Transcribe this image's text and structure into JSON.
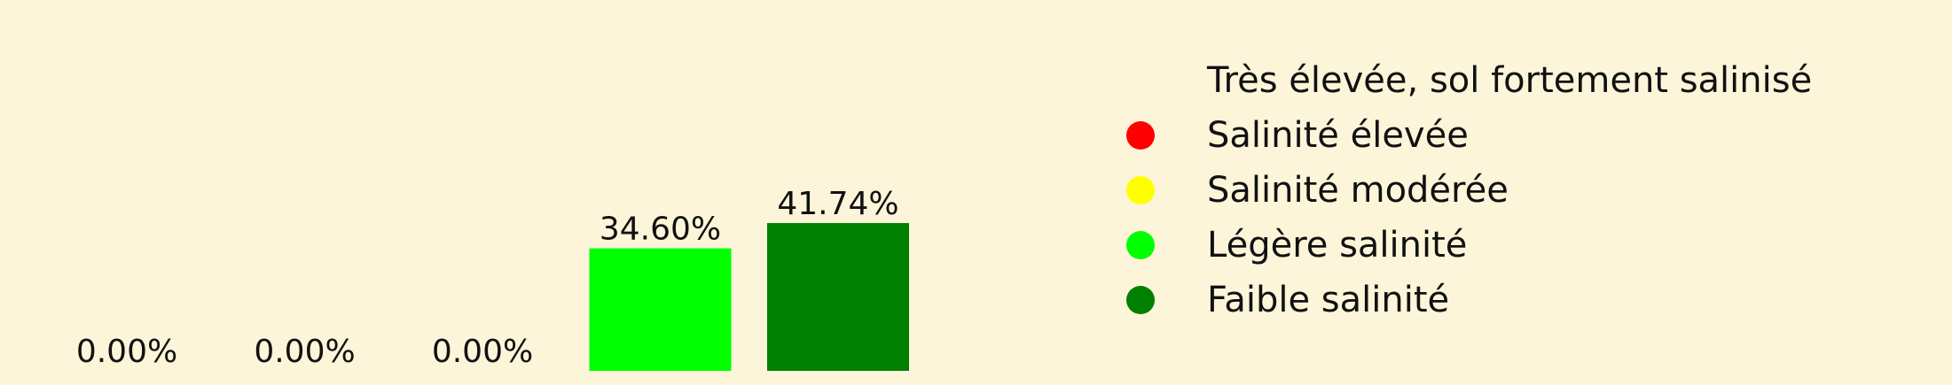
{
  "chart_data": {
    "type": "bar",
    "categories": [
      "Très élevée, sol fortement salinisé",
      "Salinité élevée",
      "Salinité modérée",
      "Légère salinité",
      "Faible salinité"
    ],
    "values": [
      0.0,
      0.0,
      0.0,
      34.6,
      41.74
    ],
    "value_labels": [
      "0.00%",
      "0.00%",
      "0.00%",
      "34.60%",
      "41.74%"
    ],
    "colors": [
      "#8b0000",
      "#ff0000",
      "#ffff00",
      "#00ff00",
      "#008000"
    ],
    "ylim": [
      0,
      50
    ],
    "grid": false,
    "legend": {
      "placement": "right",
      "entries": [
        {
          "label": "Très élevée, sol fortement salinisé",
          "color": "#fdf5d9"
        },
        {
          "label": "Salinité élevée",
          "color": "#ff0000"
        },
        {
          "label": "Salinité modérée",
          "color": "#ffff00"
        },
        {
          "label": "Légère salinité",
          "color": "#00ff00"
        },
        {
          "label": "Faible salinité",
          "color": "#008000"
        }
      ]
    },
    "background": "#fdf5d9"
  }
}
